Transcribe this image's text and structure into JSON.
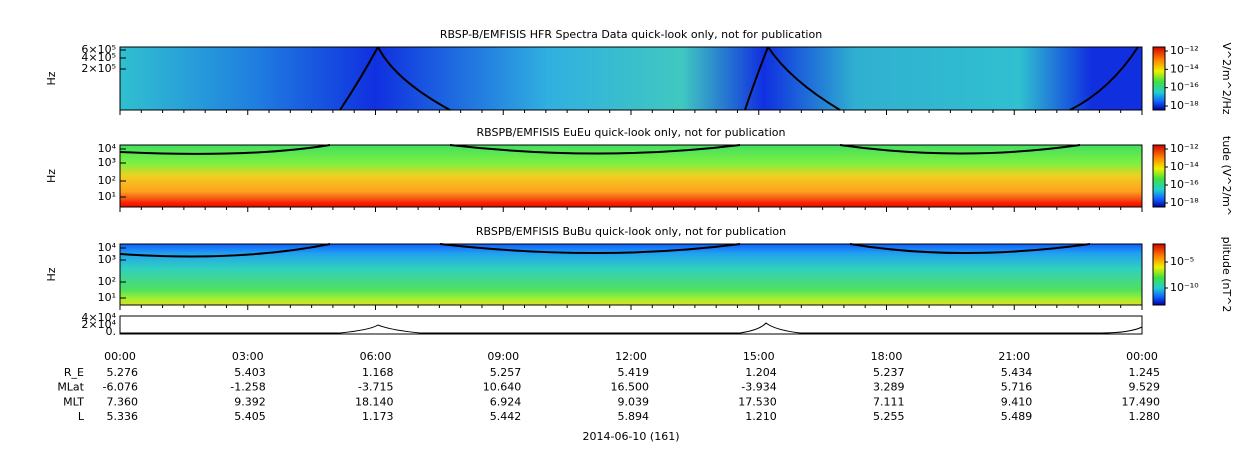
{
  "panels": [
    {
      "title": "RBSP-B/EMFISIS  HFR Spectra Data quick-look only, not for publication",
      "ylabel": "Hz",
      "yticks": [
        "6×10⁵",
        "4×10⁵",
        "2×10⁵"
      ],
      "colorbar_label": "V^2/m^2/Hz",
      "colorbar_ticks": [
        "10⁻¹²",
        "10⁻¹⁴",
        "10⁻¹⁶",
        "10⁻¹⁸"
      ]
    },
    {
      "title": "RBSPB/EMFISIS  EuEu quick-look only, not for publication",
      "ylabel": "Hz",
      "yticks": [
        "10⁴",
        "10³",
        "10²",
        "10¹"
      ],
      "colorbar_label": "tude (V^2/m^",
      "colorbar_ticks": [
        "10⁻¹²",
        "10⁻¹⁴",
        "10⁻¹⁶",
        "10⁻¹⁸"
      ]
    },
    {
      "title": "RBSPB/EMFISIS  BuBu quick-look only, not for publication",
      "ylabel": "Hz",
      "yticks": [
        "10⁴",
        "10³",
        "10²",
        "10¹"
      ],
      "colorbar_label": "plitude (nT^2",
      "colorbar_ticks": [
        "10⁻⁵",
        "10⁻¹⁰"
      ]
    }
  ],
  "line_panel": {
    "yticks": [
      "4×10⁴",
      "2×10⁴",
      "0."
    ]
  },
  "x_ticks": [
    "00:00",
    "03:00",
    "06:00",
    "09:00",
    "12:00",
    "15:00",
    "18:00",
    "21:00",
    "00:00"
  ],
  "ephemeris": [
    {
      "label": "R_E",
      "values": [
        "5.276",
        "5.403",
        "1.168",
        "5.257",
        "5.419",
        "1.204",
        "5.237",
        "5.434",
        "1.245"
      ]
    },
    {
      "label": "MLat",
      "values": [
        "-6.076",
        "-1.258",
        "-3.715",
        "10.640",
        "16.500",
        "-3.934",
        "3.289",
        "5.716",
        "9.529"
      ]
    },
    {
      "label": "MLT",
      "values": [
        "7.360",
        "9.392",
        "18.140",
        "6.924",
        "9.039",
        "17.530",
        "7.111",
        "9.410",
        "17.490"
      ]
    },
    {
      "label": "L",
      "values": [
        "5.336",
        "5.405",
        "1.173",
        "5.442",
        "5.894",
        "1.210",
        "5.255",
        "5.489",
        "1.280"
      ]
    }
  ],
  "date": "2014-06-10 (161)"
}
